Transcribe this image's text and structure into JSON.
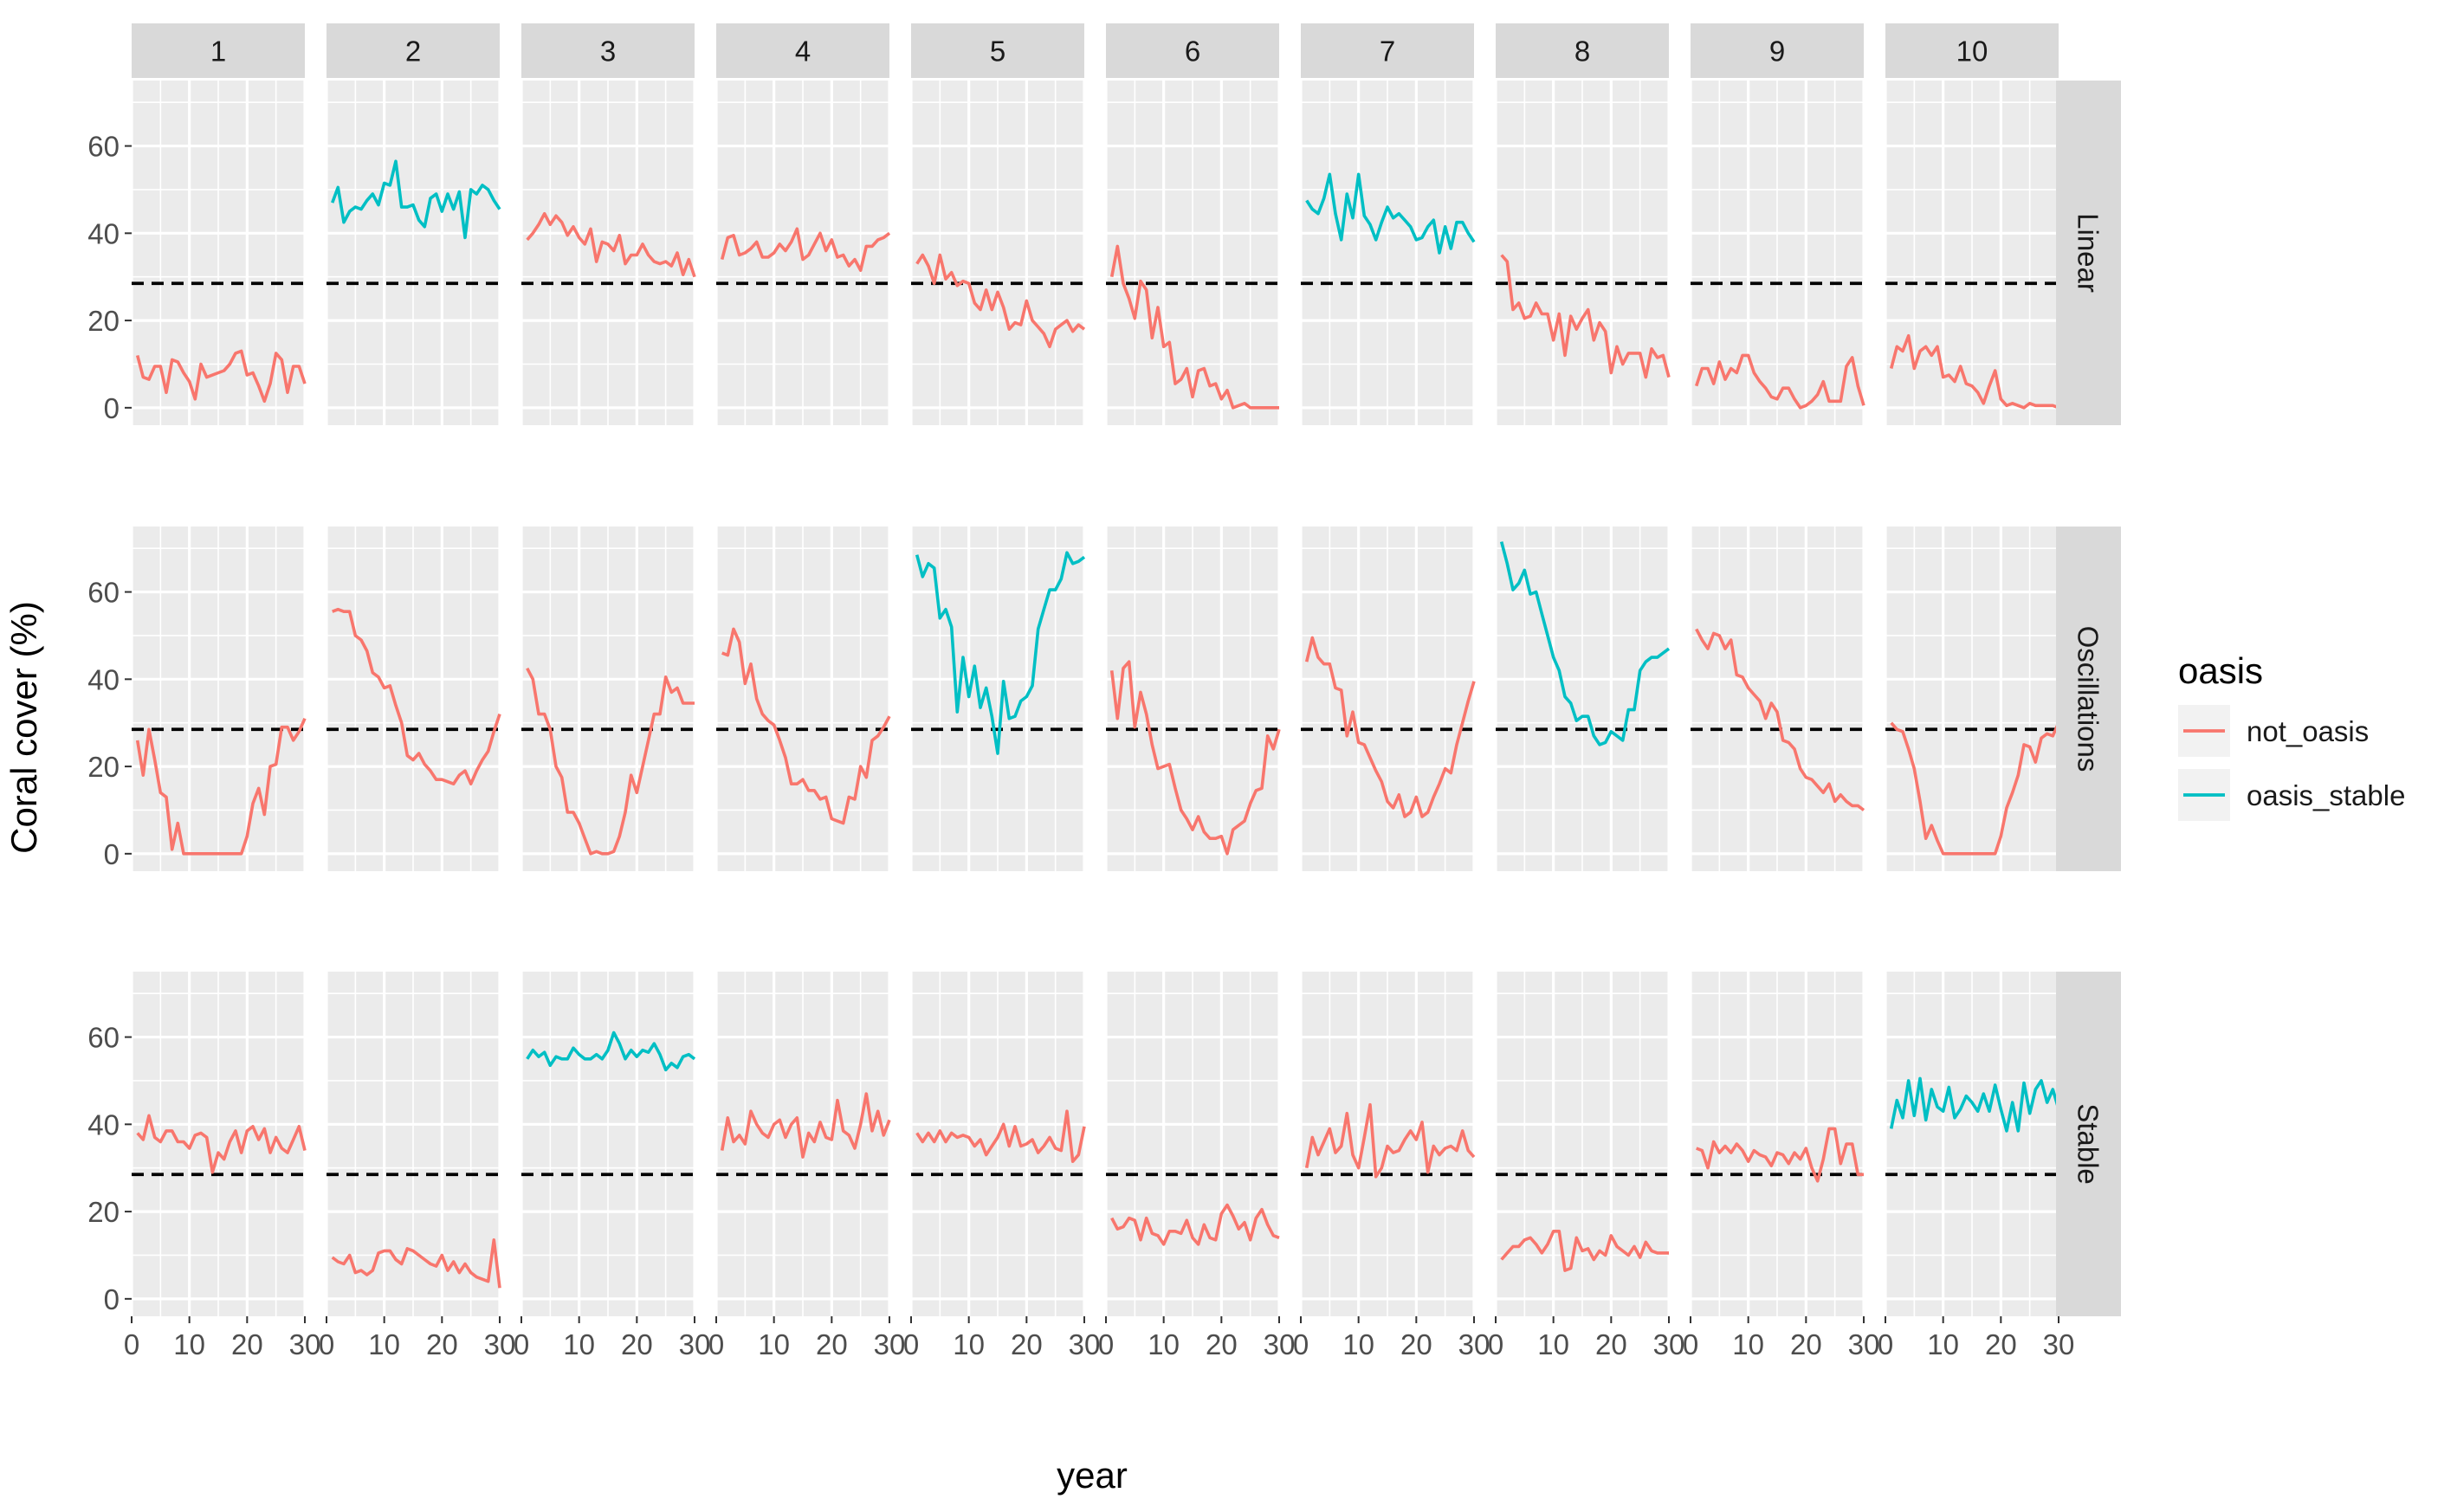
{
  "chart_data": {
    "type": "line",
    "xlabel": "year",
    "ylabel": "Coral cover (%)",
    "xlim": [
      0,
      30
    ],
    "ylim": [
      -4,
      75
    ],
    "x_ticks": [
      0,
      10,
      20,
      30
    ],
    "y_ticks": [
      0,
      20,
      40,
      60
    ],
    "grid": true,
    "reference_line": {
      "y": 28.5,
      "style": "dashed",
      "color": "#000000"
    },
    "facet_columns": [
      "1",
      "2",
      "3",
      "4",
      "5",
      "6",
      "7",
      "8",
      "9",
      "10"
    ],
    "facet_rows": [
      "Linear",
      "Oscillations",
      "Stable"
    ],
    "legend": {
      "title": "oasis",
      "position": "right",
      "entries": [
        {
          "label": "not_oasis",
          "color": "#F8766D"
        },
        {
          "label": "oasis_stable",
          "color": "#00BFC4"
        }
      ]
    },
    "panels": [
      {
        "row": "Linear",
        "col": "1",
        "oasis": "not_oasis",
        "values": [
          12,
          7,
          6.5,
          9.5,
          9.5,
          3.5,
          11,
          10.5,
          8,
          6,
          2,
          10,
          7,
          7.5,
          8,
          8.5,
          10,
          12.5,
          13,
          7.5,
          8,
          5,
          1.5,
          5.5,
          12.5,
          11,
          3.5,
          9.5,
          9.5,
          5.5
        ]
      },
      {
        "row": "Linear",
        "col": "2",
        "oasis": "oasis_stable",
        "values": [
          47,
          50.5,
          42.5,
          45,
          46,
          45.5,
          47.5,
          49,
          46.5,
          51.5,
          51,
          56.5,
          46,
          46,
          46.5,
          43,
          41.5,
          48,
          49,
          45,
          49,
          45.5,
          49.5,
          39,
          50,
          49,
          51,
          50,
          47.5,
          45.5
        ]
      },
      {
        "row": "Linear",
        "col": "3",
        "oasis": "not_oasis",
        "values": [
          38.5,
          40,
          42,
          44.5,
          42,
          44,
          42.5,
          39.5,
          41.5,
          39,
          37.5,
          41,
          33.5,
          38,
          37.5,
          36,
          39.5,
          33,
          35,
          35,
          37.5,
          35,
          33.5,
          33,
          33.5,
          32.5,
          35.5,
          30.5,
          34,
          30
        ]
      },
      {
        "row": "Linear",
        "col": "4",
        "oasis": "not_oasis",
        "values": [
          34,
          39,
          39.5,
          35,
          35.5,
          36.5,
          38,
          34.5,
          34.5,
          35.5,
          37.5,
          36,
          38,
          41,
          34,
          35,
          37.5,
          40,
          36,
          38.5,
          34.5,
          35,
          32.5,
          34,
          31.5,
          37,
          37,
          38.5,
          39,
          40
        ]
      },
      {
        "row": "Linear",
        "col": "5",
        "oasis": "not_oasis",
        "values": [
          33,
          35,
          32.5,
          28.5,
          35,
          29.5,
          31,
          28,
          29,
          28.5,
          24,
          22.5,
          27,
          22.5,
          26.5,
          23,
          18,
          19.5,
          19,
          24.5,
          20,
          18.5,
          17,
          14,
          18,
          19,
          20,
          17.5,
          19,
          18
        ]
      },
      {
        "row": "Linear",
        "col": "6",
        "oasis": "not_oasis",
        "values": [
          30,
          37,
          28.5,
          25,
          20.5,
          29,
          27,
          16,
          23,
          14,
          15,
          5.5,
          6.5,
          9,
          2.5,
          8.5,
          9,
          5,
          5.5,
          2,
          4,
          0,
          0.5,
          1,
          0,
          0,
          0,
          0,
          0,
          0
        ]
      },
      {
        "row": "Linear",
        "col": "7",
        "oasis": "oasis_stable",
        "values": [
          47.5,
          45.5,
          44.5,
          48,
          53.5,
          44.5,
          38.5,
          49,
          43.5,
          53.5,
          44,
          42,
          38.5,
          42.5,
          46,
          43.5,
          44.5,
          43,
          41.5,
          38.5,
          39,
          41.5,
          43,
          35.5,
          41.5,
          36.5,
          42.5,
          42.5,
          40,
          38
        ]
      },
      {
        "row": "Linear",
        "col": "8",
        "oasis": "not_oasis",
        "values": [
          35,
          33.5,
          22.5,
          24,
          20.5,
          21,
          24,
          21.5,
          21.5,
          15.5,
          21.5,
          12,
          21,
          18,
          20.5,
          22.5,
          15.5,
          19.5,
          17.5,
          8,
          14,
          10,
          12.5,
          12.5,
          12.5,
          7,
          13.5,
          11.5,
          12,
          7
        ]
      },
      {
        "row": "Linear",
        "col": "9",
        "oasis": "not_oasis",
        "values": [
          5,
          9,
          9,
          5.5,
          10.5,
          6.5,
          9,
          8,
          12,
          12,
          8,
          6,
          4.5,
          2.5,
          2,
          4.5,
          4.5,
          2,
          0,
          0.5,
          1.5,
          3,
          6,
          1.5,
          1.5,
          1.5,
          9.5,
          11.5,
          5,
          0.5
        ]
      },
      {
        "row": "Linear",
        "col": "10",
        "oasis": "not_oasis",
        "values": [
          9,
          14,
          13,
          16.5,
          9,
          13,
          14,
          12,
          14,
          7,
          7.5,
          6,
          9.5,
          5.5,
          5,
          3.5,
          1,
          5,
          8.5,
          2,
          0.5,
          1,
          0.5,
          0,
          1,
          0.5,
          0.5,
          0.5,
          0.5,
          0
        ]
      },
      {
        "row": "Oscillations",
        "col": "1",
        "oasis": "not_oasis",
        "values": [
          26,
          18,
          28.5,
          21.5,
          14,
          13,
          1,
          7,
          0,
          0,
          0,
          0,
          0,
          0,
          0,
          0,
          0,
          0,
          0,
          4,
          11.5,
          15,
          9,
          20,
          20.5,
          29,
          29,
          26,
          28,
          31
        ]
      },
      {
        "row": "Oscillations",
        "col": "2",
        "oasis": "not_oasis",
        "values": [
          55.5,
          56,
          55.5,
          55.5,
          50,
          49,
          46.5,
          41.5,
          40.5,
          38,
          38.5,
          34,
          30,
          22.5,
          21.5,
          23,
          20.5,
          19,
          17,
          17,
          16.5,
          16,
          18,
          19,
          16,
          19,
          21.5,
          23.5,
          28,
          32
        ]
      },
      {
        "row": "Oscillations",
        "col": "3",
        "oasis": "not_oasis",
        "values": [
          42.5,
          40,
          32,
          32,
          28.5,
          20,
          17.5,
          9.5,
          9.5,
          7,
          3.5,
          0,
          0.5,
          0,
          0,
          0.5,
          4,
          9.5,
          18,
          14,
          20,
          26,
          32,
          32,
          40.5,
          37,
          38,
          34.5,
          34.5,
          34.5
        ]
      },
      {
        "row": "Oscillations",
        "col": "4",
        "oasis": "not_oasis",
        "values": [
          46,
          45.5,
          51.5,
          48.5,
          39,
          43.5,
          35.5,
          32,
          30.5,
          29.5,
          26,
          22,
          16,
          16,
          17,
          14.5,
          14.5,
          12.5,
          13,
          8,
          7.5,
          7,
          13,
          12.5,
          20,
          17.5,
          26,
          27,
          29,
          31.5
        ]
      },
      {
        "row": "Oscillations",
        "col": "5",
        "oasis": "oasis_stable",
        "values": [
          68.5,
          63.5,
          66.5,
          65.5,
          54,
          56,
          52,
          32.5,
          45,
          36,
          43,
          33.5,
          38,
          31.5,
          23,
          39.5,
          31,
          31.5,
          35,
          36,
          38.5,
          51.5,
          56,
          60.5,
          60.5,
          63,
          69,
          66.5,
          67,
          68
        ]
      },
      {
        "row": "Oscillations",
        "col": "6",
        "oasis": "not_oasis",
        "values": [
          42,
          31,
          42.5,
          44,
          29,
          37,
          32,
          25,
          19.5,
          20,
          20.5,
          15,
          10,
          8,
          5.5,
          8.5,
          5,
          3.5,
          3.5,
          4,
          0,
          5.5,
          6.5,
          7.5,
          11.5,
          14.5,
          15,
          27,
          24,
          28.5
        ]
      },
      {
        "row": "Oscillations",
        "col": "7",
        "oasis": "not_oasis",
        "values": [
          44,
          49.5,
          45,
          43.5,
          43.5,
          38,
          37.5,
          27,
          32.5,
          25.5,
          25,
          22,
          19,
          16.5,
          12,
          10.5,
          13.5,
          8.5,
          9.5,
          13,
          8.5,
          9.5,
          13,
          16,
          19.5,
          18.5,
          25,
          30,
          35,
          39.5
        ]
      },
      {
        "row": "Oscillations",
        "col": "8",
        "oasis": "oasis_stable",
        "values": [
          71.5,
          66.5,
          60.5,
          62,
          65,
          59.5,
          60,
          55,
          50,
          45,
          42,
          36,
          34.5,
          30.5,
          31.5,
          31.5,
          27,
          25,
          25.5,
          28,
          27,
          26,
          33,
          33,
          42,
          44,
          45,
          45,
          46,
          47
        ]
      },
      {
        "row": "Oscillations",
        "col": "9",
        "oasis": "not_oasis",
        "values": [
          51.5,
          49,
          47,
          50.5,
          50,
          47,
          49,
          41,
          40.5,
          38,
          36.5,
          35,
          31,
          34.5,
          32.5,
          26,
          25.5,
          24,
          19.5,
          17.5,
          17,
          15.5,
          14,
          16,
          12,
          13.5,
          12,
          11,
          11,
          10
        ]
      },
      {
        "row": "Oscillations",
        "col": "10",
        "oasis": "not_oasis",
        "values": [
          30,
          28.5,
          28,
          24,
          19.5,
          12,
          3.5,
          6.5,
          3,
          0,
          0,
          0,
          0,
          0,
          0,
          0,
          0,
          0,
          0,
          4,
          10.5,
          14,
          18,
          25,
          24.5,
          21,
          26.5,
          27.5,
          27,
          30
        ]
      },
      {
        "row": "Stable",
        "col": "1",
        "oasis": "not_oasis",
        "values": [
          38,
          36.5,
          42,
          37,
          36,
          38.5,
          38.5,
          36,
          36,
          34.5,
          37.5,
          38,
          37,
          29,
          33.5,
          32,
          36,
          38.5,
          33.5,
          38.5,
          39.5,
          36.5,
          39,
          33.5,
          37,
          34.5,
          33.5,
          36.5,
          39.5,
          34
        ]
      },
      {
        "row": "Stable",
        "col": "2",
        "oasis": "not_oasis",
        "values": [
          9.5,
          8.5,
          8,
          10,
          6,
          6.5,
          5.5,
          6.5,
          10.5,
          11,
          11,
          9,
          8,
          11.5,
          11,
          10,
          9,
          8,
          7.5,
          10,
          6.5,
          8.5,
          6,
          8,
          6,
          5,
          4.5,
          4,
          13.5,
          2.5
        ]
      },
      {
        "row": "Stable",
        "col": "3",
        "oasis": "oasis_stable",
        "values": [
          55,
          57,
          55.5,
          56.5,
          53.5,
          55.5,
          55,
          55,
          57.5,
          56,
          55,
          55,
          56,
          55,
          57,
          61,
          58.5,
          55,
          57,
          55.5,
          57,
          56.5,
          58.5,
          56,
          52.5,
          54,
          53,
          55.5,
          56,
          55
        ]
      },
      {
        "row": "Stable",
        "col": "4",
        "oasis": "not_oasis",
        "values": [
          34,
          41.5,
          36,
          37.5,
          35.5,
          43,
          40,
          38,
          37,
          40,
          41,
          37,
          40,
          41.5,
          32.5,
          38,
          36,
          40.5,
          37,
          36.5,
          45.5,
          38.5,
          37.5,
          34.5,
          40,
          47,
          38.5,
          43,
          37.5,
          41
        ]
      },
      {
        "row": "Stable",
        "col": "5",
        "oasis": "not_oasis",
        "values": [
          38,
          36,
          38,
          36,
          38.5,
          36,
          38,
          37,
          37.5,
          37,
          35,
          36.5,
          33,
          35,
          37,
          40,
          35,
          39.5,
          35,
          35.5,
          36.5,
          33.5,
          35,
          37,
          34.5,
          34,
          43,
          31.5,
          33,
          39.5
        ]
      },
      {
        "row": "Stable",
        "col": "6",
        "oasis": "not_oasis",
        "values": [
          18.5,
          16,
          16.5,
          18.5,
          18,
          13.5,
          18.5,
          15,
          14.5,
          12.5,
          15.5,
          15.5,
          15,
          18,
          14,
          12.5,
          17,
          14,
          13.5,
          19.5,
          21.5,
          19,
          16,
          17.5,
          13.5,
          18.5,
          20.5,
          17,
          14.5,
          14
        ]
      },
      {
        "row": "Stable",
        "col": "7",
        "oasis": "not_oasis",
        "values": [
          30,
          37,
          33,
          36,
          39,
          33.5,
          35,
          42.5,
          33,
          30,
          37,
          44.5,
          28,
          30,
          35,
          33.5,
          34,
          36.5,
          38.5,
          36.5,
          40.5,
          29,
          35,
          33,
          34.5,
          35,
          34,
          38.5,
          34,
          32.5
        ]
      },
      {
        "row": "Stable",
        "col": "8",
        "oasis": "not_oasis",
        "values": [
          9,
          10.5,
          12,
          12,
          13.5,
          14,
          12.5,
          10.5,
          12.5,
          15.5,
          15.5,
          6.5,
          7,
          14,
          11,
          11.5,
          9,
          11,
          10,
          14.5,
          12,
          11,
          10,
          12,
          9.5,
          13,
          11,
          10.5,
          10.5,
          10.5
        ]
      },
      {
        "row": "Stable",
        "col": "9",
        "oasis": "not_oasis",
        "values": [
          34.5,
          34,
          30,
          36,
          33.5,
          35,
          33.5,
          35.5,
          34,
          31.5,
          34,
          33,
          32.5,
          30.5,
          33.5,
          33,
          31,
          33.5,
          32,
          34.5,
          30,
          27,
          32,
          39,
          39,
          31,
          35.5,
          35.5,
          28.5,
          28.5
        ]
      },
      {
        "row": "Stable",
        "col": "10",
        "oasis": "oasis_stable",
        "values": [
          39,
          45.5,
          41.5,
          50,
          42,
          50.5,
          41,
          48,
          44,
          43,
          48.5,
          41.5,
          43.5,
          46.5,
          45,
          43,
          47,
          43,
          49,
          43.5,
          38.5,
          45,
          38.5,
          49.5,
          42.5,
          48,
          50,
          45,
          48,
          43.5
        ]
      }
    ]
  }
}
